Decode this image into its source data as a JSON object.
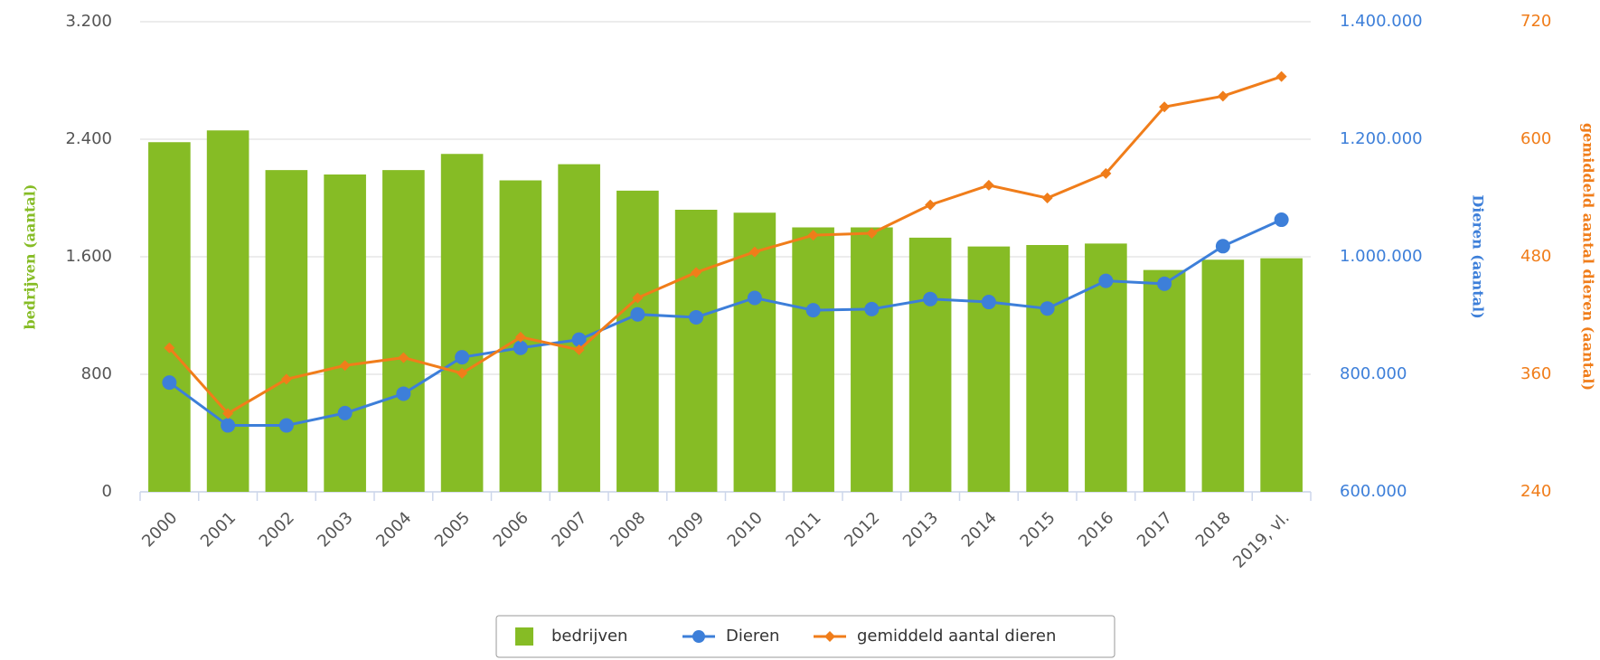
{
  "chart_data": {
    "type": "combo",
    "categories": [
      "2000",
      "2001",
      "2002",
      "2003",
      "2004",
      "2005",
      "2006",
      "2007",
      "2008",
      "2009",
      "2010",
      "2011",
      "2012",
      "2013",
      "2014",
      "2015",
      "2016",
      "2017",
      "2018",
      "2019, vl."
    ],
    "y_label": "bedrijven (aantal)",
    "y2_label": "Dieren (aantal)",
    "y3_label": "gemiddeld aantal dieren (aantal)",
    "ylim": [
      0,
      3200
    ],
    "yticks": [
      0,
      {
        "value": 800,
        "label": "800"
      },
      {
        "value": 1600,
        "label": "1.600"
      },
      {
        "value": 2400,
        "label": "2.400"
      },
      {
        "value": 3200,
        "label": "3.200"
      }
    ],
    "y2lim": [
      600000,
      1400000
    ],
    "y2ticks": [
      {
        "value": 600000,
        "label": "600.000"
      },
      {
        "value": 800000,
        "label": "800.000"
      },
      {
        "value": 1000000,
        "label": "1.000.000"
      },
      {
        "value": 1200000,
        "label": "1.200.000"
      },
      {
        "value": 1400000,
        "label": "1.400.000"
      }
    ],
    "y3lim": [
      240,
      720
    ],
    "y3ticks": [
      240,
      360,
      480,
      600,
      720
    ],
    "grid": true,
    "legend": "bottom",
    "series": [
      {
        "name": "bedrijven",
        "type": "bar",
        "axis": "y",
        "color": "#86bc25",
        "values": [
          2380,
          2460,
          2190,
          2160,
          2190,
          2300,
          2120,
          2230,
          2050,
          1920,
          1900,
          1800,
          1800,
          1730,
          1670,
          1680,
          1690,
          1510,
          1580,
          1590
        ]
      },
      {
        "name": "Dieren",
        "type": "line",
        "marker": "circle",
        "axis": "y2",
        "color": "#3d7fd9",
        "values": [
          786000,
          713000,
          713000,
          734000,
          767000,
          829000,
          845000,
          859000,
          902000,
          897000,
          930000,
          909000,
          911000,
          928000,
          923000,
          912000,
          959000,
          954000,
          1018000,
          1063000
        ]
      },
      {
        "name": "gemiddeld aantal dieren",
        "type": "line",
        "marker": "diamond",
        "axis": "y3",
        "color": "#f07d1a",
        "values": [
          387,
          320,
          355,
          369,
          377,
          361,
          398,
          385,
          438,
          464,
          485,
          502,
          504,
          533,
          553,
          540,
          565,
          633,
          644,
          664
        ]
      }
    ]
  }
}
